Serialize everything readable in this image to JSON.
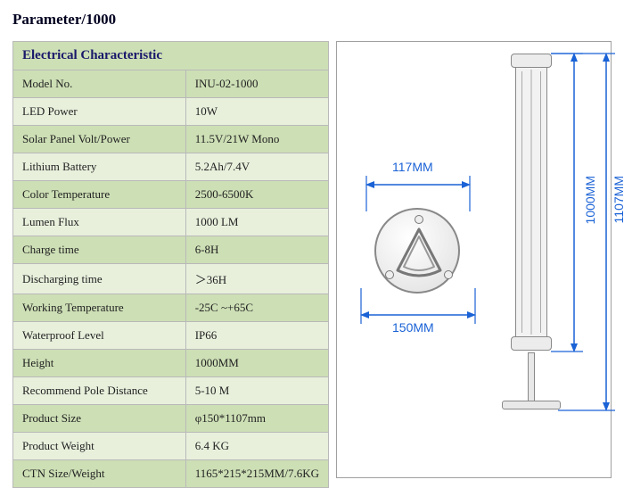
{
  "title": "Parameter/1000",
  "table": {
    "header": "Electrical Characteristic",
    "rows": [
      {
        "label": "Model No.",
        "value": "INU-02-1000"
      },
      {
        "label": "LED Power",
        "value": "10W"
      },
      {
        "label": "Solar Panel Volt/Power",
        "value": "11.5V/21W Mono"
      },
      {
        "label": "Lithium Battery",
        "value": "5.2Ah/7.4V"
      },
      {
        "label": "Color Temperature",
        "value": "2500-6500K"
      },
      {
        "label": "Lumen Flux",
        "value": "1000 LM"
      },
      {
        "label": "Charge time",
        "value": "6-8H"
      },
      {
        "label": "Discharging time",
        "value": "＞36H"
      },
      {
        "label": "Working Temperature",
        "value": "-25C ~+65C"
      },
      {
        "label": "Waterproof  Level",
        "value": "IP66"
      },
      {
        "label": "Height",
        "value": "1000MM"
      },
      {
        "label": "Recommend Pole Distance",
        "value": "5-10 M"
      },
      {
        "label": "Product Size",
        "value": " φ150*1107mm"
      },
      {
        "label": "Product Weight",
        "value": "6.4 KG"
      },
      {
        "label": "CTN Size/Weight",
        "value": "1165*215*215MM/7.6KG"
      }
    ]
  },
  "diagram": {
    "top_width_label": "117MM",
    "base_width_label": "150MM",
    "column_height_label": "1000MM",
    "total_height_label": "1107MM",
    "dim_color": "#1a62d6",
    "outline_color": "#7a7a7a"
  }
}
